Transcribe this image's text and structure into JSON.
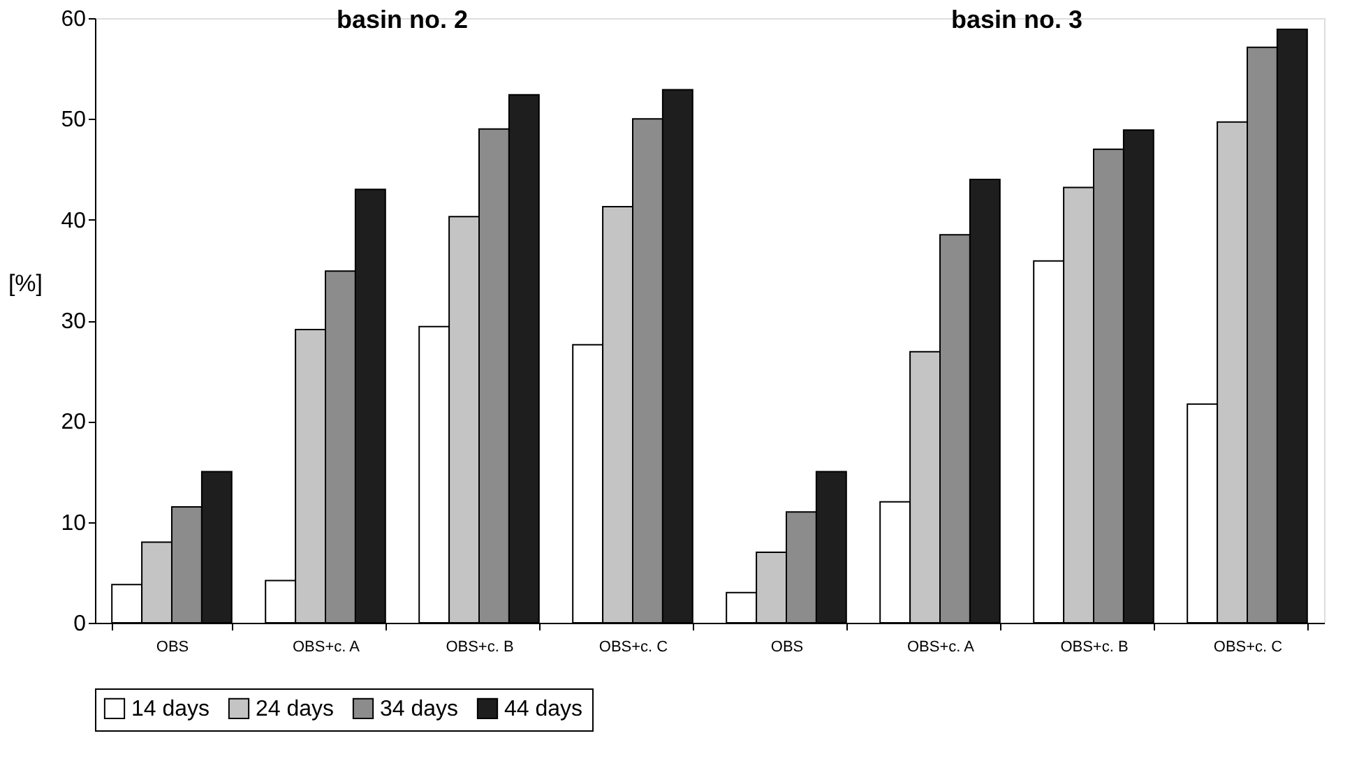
{
  "chart_data": {
    "type": "bar",
    "ylabel": "[%]",
    "categories": [
      "OBS",
      "OBS+c. A",
      "OBS+c. B",
      "OBS+c. C",
      "OBS",
      "OBS+c. A",
      "OBS+c. B",
      "OBS+c. C"
    ],
    "series": [
      {
        "name": "14 days",
        "color": "#ffffff",
        "values": [
          3.8,
          4.2,
          29.4,
          27.6,
          3,
          12,
          35.9,
          21.7
        ]
      },
      {
        "name": "24 days",
        "color": "#c4c4c4",
        "values": [
          8,
          29.1,
          40.3,
          41.3,
          7,
          26.9,
          43.2,
          49.7
        ]
      },
      {
        "name": "34 days",
        "color": "#8c8c8c",
        "values": [
          11.5,
          34.9,
          49,
          50,
          11,
          38.5,
          47,
          57.1
        ]
      },
      {
        "name": "44 days",
        "color": "#1e1e1e",
        "values": [
          15,
          43,
          52.4,
          52.9,
          15,
          44,
          48.9,
          58.9
        ]
      }
    ],
    "ylim": [
      0,
      60
    ],
    "yticks": [
      0,
      10,
      20,
      30,
      40,
      50,
      60
    ],
    "annotations": [
      "basin no. 2",
      "basin no. 3"
    ],
    "legend": "bottom",
    "grid": false
  }
}
